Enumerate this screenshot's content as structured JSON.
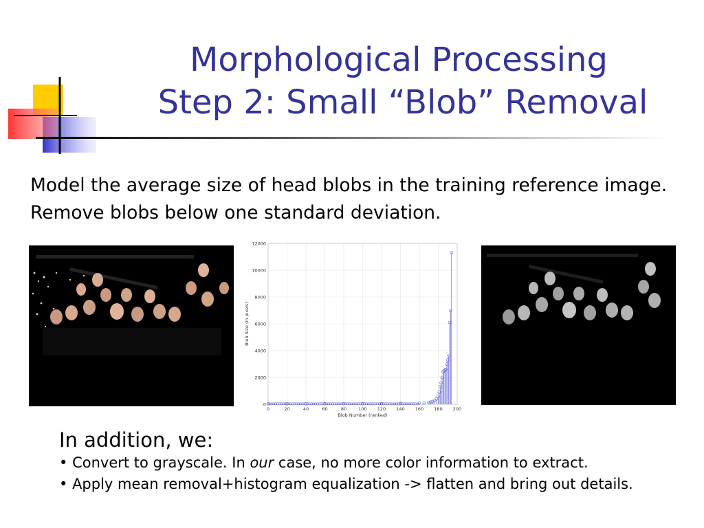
{
  "slide": {
    "title_line1": "Morphological Processing",
    "title_line2": "Step 2: Small “Blob” Removal",
    "intro": "Model the average size of head blobs in the training reference image. Remove blobs below one standard deviation.",
    "addition_heading": "In addition, we:",
    "bullet1": {
      "marker": "•",
      "pre": " Convert to grayscale. In ",
      "em": "our",
      "post": " case, no more color information to extract."
    },
    "bullet2": {
      "marker": "•",
      "text": " Apply mean removal+histogram equalization -> flatten and bring out details."
    }
  },
  "images": {
    "left": "segmented color photo of group of people (heads on black background)",
    "right": "grayscale heads on black background after blob removal"
  },
  "colors": {
    "title": "#333399",
    "deco_yellow": "#ffcc00",
    "deco_blue": "#3333cc",
    "deco_red": "#ff3333",
    "series": "#6b6bd6"
  },
  "chart_data": {
    "type": "scatter",
    "style": "stem",
    "title": "",
    "xlabel": "Blob Number (ranked)",
    "ylabel": "Blob Size (in pixels)",
    "xlim": [
      0,
      200
    ],
    "ylim": [
      0,
      12000
    ],
    "xticks": [
      0,
      20,
      40,
      60,
      80,
      100,
      120,
      140,
      160,
      180,
      200
    ],
    "yticks": [
      0,
      2000,
      4000,
      6000,
      8000,
      10000,
      12000
    ],
    "grid": true,
    "x": [
      0,
      20,
      40,
      60,
      80,
      100,
      120,
      140,
      160,
      165,
      170,
      172,
      174,
      176,
      178,
      180,
      181,
      182,
      183,
      184,
      185,
      186,
      187,
      188,
      189,
      190,
      191,
      192,
      193,
      194
    ],
    "values": [
      30,
      30,
      30,
      35,
      35,
      40,
      45,
      55,
      80,
      100,
      130,
      160,
      200,
      280,
      400,
      600,
      900,
      1300,
      1600,
      2000,
      2400,
      2500,
      2550,
      2600,
      3000,
      3300,
      3600,
      6100,
      7000,
      11300
    ]
  }
}
